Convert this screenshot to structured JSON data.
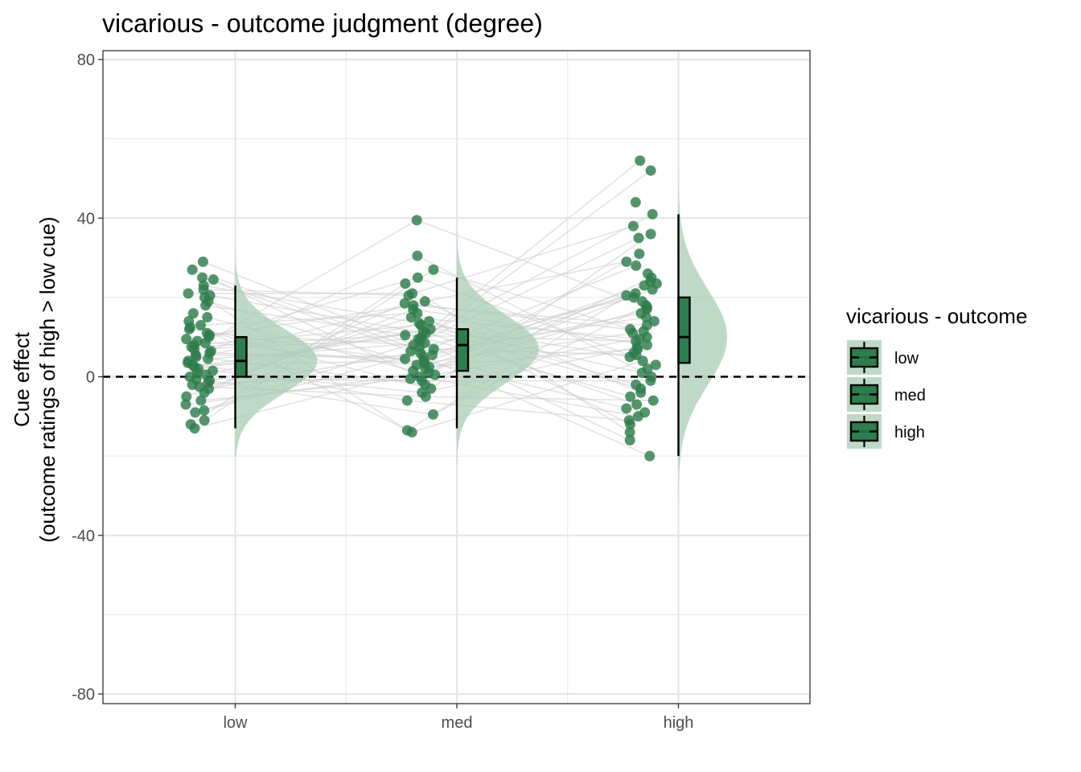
{
  "chart_data": {
    "type": "raincloud",
    "title": "vicarious  - outcome judgment (degree)",
    "xlabel": "",
    "ylabel_line1": "Cue effect",
    "ylabel_line2": "(outcome ratings of high > low cue)",
    "categories": [
      "low",
      "med",
      "high"
    ],
    "ylim": [
      -82,
      82
    ],
    "yticks": [
      80,
      40,
      0,
      -40,
      -80
    ],
    "ytick_labels": [
      "80",
      "40",
      "0",
      "-40",
      "-80"
    ],
    "grid": true,
    "reference_line": {
      "y": 0,
      "style": "dashed"
    },
    "legend": {
      "title": "vicarious  - outcome",
      "position": "right",
      "entries": [
        "low",
        "med",
        "high"
      ]
    },
    "colors": {
      "point": "#2e7d4c",
      "box_fill": "#2e7d4c",
      "density_fill": "#a8cdb4",
      "connector": "#cccccc",
      "grid": "#e6e6e6"
    },
    "boxplots": [
      {
        "category": "low",
        "whisker_low": -13,
        "q1": 0,
        "median": 4,
        "q3": 10,
        "whisker_high": 23
      },
      {
        "category": "med",
        "whisker_low": -13,
        "q1": 1.5,
        "median": 8,
        "q3": 12,
        "whisker_high": 25
      },
      {
        "category": "high",
        "whisker_low": -20,
        "q1": 3.5,
        "median": 10,
        "q3": 20,
        "whisker_high": 41
      }
    ],
    "densities": [
      {
        "category": "low",
        "mean": 4,
        "sd": 8,
        "ymin": -20,
        "ymax": 37,
        "peak_width": 0.37
      },
      {
        "category": "med",
        "mean": 7,
        "sd": 8.5,
        "ymin": -22,
        "ymax": 48,
        "peak_width": 0.37
      },
      {
        "category": "high",
        "mean": 10,
        "sd": 12,
        "ymin": -32,
        "ymax": 70,
        "peak_width": 0.22
      }
    ],
    "points": [
      {
        "category": "low",
        "values": [
          29,
          27,
          25,
          24.5,
          23,
          22,
          21,
          20.5,
          20,
          19,
          18,
          16,
          15,
          14,
          13,
          12.5,
          12,
          11,
          10.5,
          10,
          9.5,
          9,
          8.5,
          8,
          7.5,
          7,
          6.5,
          6,
          5.5,
          5,
          4.5,
          4,
          3.5,
          3,
          2.5,
          2,
          1.5,
          1,
          0.5,
          0,
          -0.5,
          -1,
          -1.5,
          -2,
          -2.5,
          -3,
          -4,
          -5,
          -6,
          -7,
          -8.5,
          -9,
          -11,
          -12,
          -13
        ]
      },
      {
        "category": "med",
        "values": [
          39.5,
          30.5,
          27,
          25,
          23.5,
          21,
          20.5,
          19,
          18.5,
          18,
          17,
          16,
          15,
          14,
          13.5,
          13,
          12,
          11.5,
          11,
          10.5,
          10,
          9.5,
          9,
          8.5,
          8,
          7.5,
          7,
          6.5,
          6,
          5.5,
          5,
          4.5,
          4,
          3.5,
          3,
          2.5,
          2,
          1.5,
          1,
          0.5,
          0,
          -0.5,
          -1,
          -2,
          -3,
          -4,
          -5,
          -6,
          -9.5,
          -13.5,
          -14
        ]
      },
      {
        "category": "high",
        "values": [
          54.5,
          52,
          44,
          41,
          38,
          36,
          35,
          31,
          29,
          28,
          26,
          25,
          24,
          23.5,
          23,
          22,
          21,
          20.5,
          20,
          19,
          18,
          17.5,
          17,
          16,
          15,
          14,
          13,
          12,
          11.5,
          11,
          10,
          9.5,
          9,
          8,
          7.5,
          7,
          6,
          5.5,
          5,
          4,
          3,
          2,
          1,
          0,
          -1,
          -2,
          -3,
          -4,
          -5,
          -6,
          -7,
          -8,
          -9,
          -10,
          -11,
          -12,
          -14,
          -16,
          -20
        ]
      }
    ]
  }
}
